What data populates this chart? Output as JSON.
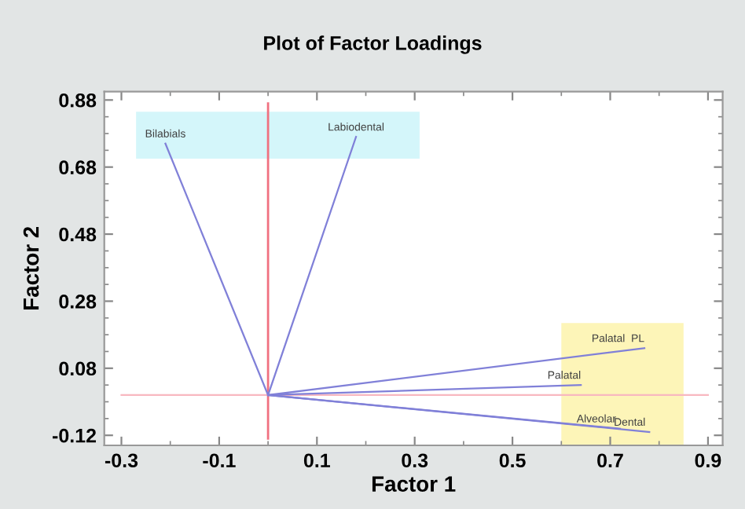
{
  "chart_data": {
    "type": "line",
    "title": "Plot of Factor Loadings",
    "xlabel": "Factor 1",
    "ylabel": "Factor 2",
    "xlim": [
      -0.335,
      0.93
    ],
    "ylim": [
      -0.15,
      0.905
    ],
    "xticks": [
      -0.3,
      -0.1,
      0.1,
      0.3,
      0.5,
      0.7,
      0.9
    ],
    "yticks": [
      -0.12,
      0.08,
      0.28,
      0.48,
      0.68,
      0.88
    ],
    "grid": false,
    "legend": false,
    "marker": "none",
    "line_style": "solid",
    "ref_lines": [
      {
        "axis": "x",
        "value": 0,
        "color": "#f07080"
      },
      {
        "axis": "y",
        "value": 0,
        "color": "#f8b8c0"
      }
    ],
    "bands": [
      {
        "axis": "x",
        "from": -0.27,
        "to": 0.31,
        "color": "#d4f6fa"
      },
      {
        "axis": "x",
        "from": 0.6,
        "to": 0.85,
        "color": "#fdf5b8"
      }
    ],
    "series": [
      {
        "name": "Bilabials",
        "color": "#8080d8",
        "x": [
          0,
          -0.21
        ],
        "values": [
          0,
          0.75
        ]
      },
      {
        "name": "Labiodental",
        "color": "#8080d8",
        "x": [
          0,
          0.18
        ],
        "values": [
          0,
          0.77
        ]
      },
      {
        "name": "Palatal  PL",
        "color": "#8080d8",
        "x": [
          0,
          0.77
        ],
        "values": [
          0,
          0.14
        ]
      },
      {
        "name": "Palatal",
        "color": "#8080d8",
        "x": [
          0,
          0.64
        ],
        "values": [
          0,
          0.03
        ]
      },
      {
        "name": "Alveolar",
        "color": "#8080d8",
        "x": [
          0,
          0.72
        ],
        "values": [
          0,
          -0.1
        ]
      },
      {
        "name": "Dental",
        "color": "#8080d8",
        "x": [
          0,
          0.78
        ],
        "values": [
          0,
          -0.11
        ]
      }
    ]
  }
}
